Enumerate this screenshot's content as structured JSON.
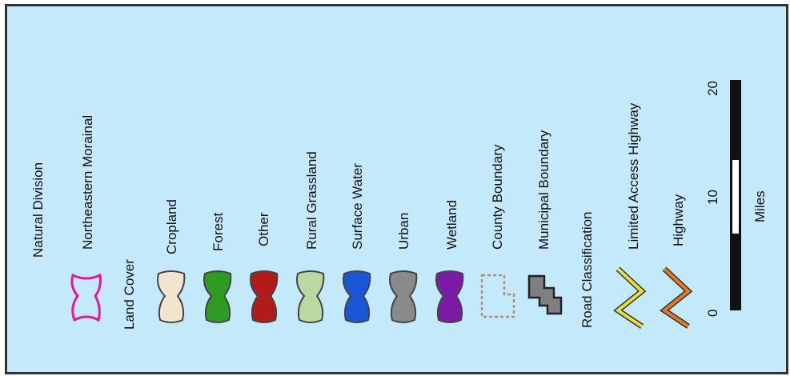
{
  "legend": {
    "sections": {
      "natural_division": "Natural Division",
      "land_cover": "Land Cover",
      "road_classification": "Road Classification"
    },
    "items": {
      "northeastern_morainal": "Northeastern Morainal",
      "cropland": "Cropland",
      "forest": "Forest",
      "other": "Other",
      "rural_grassland": "Rural Grassland",
      "surface_water": "Surface Water",
      "urban": "Urban",
      "wetland": "Wetland",
      "county_boundary": "County Boundary",
      "municipal_boundary": "Municipal Boundary",
      "limited_access_highway": "Limited Access Highway",
      "highway": "Highway"
    },
    "colors": {
      "northeastern_morainal": "#e8179a",
      "cropland": "#f3e4cf",
      "forest": "#2f9b22",
      "other": "#b21b1b",
      "rural_grassland": "#bcd8a2",
      "surface_water": "#1b56d6",
      "urban": "#8a8a8a",
      "wetland": "#7d1aa8",
      "county_boundary": "#b88a7a",
      "municipal_boundary": "#7f7f7f",
      "limited_access_highway": "#e8df3a",
      "highway": "#e07c1c"
    },
    "scale": {
      "unit": "Miles",
      "ticks": [
        "0",
        "10",
        "20"
      ]
    }
  }
}
